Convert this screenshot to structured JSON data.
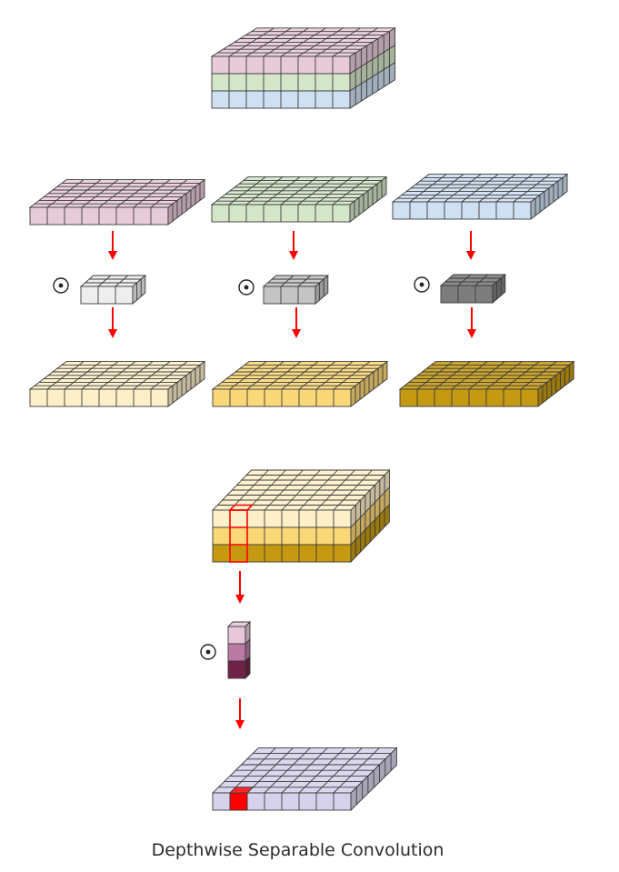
{
  "caption": "Depthwise Separable Convolution",
  "colors": {
    "pink": "#e8cbd9",
    "green": "#d3e6c8",
    "blue": "#cfe0f2",
    "light_yellow": "#fdefc8",
    "yellow": "#fbd877",
    "dark_yellow": "#c59a12",
    "kernel_light": "#eeeeee",
    "kernel_mid": "#c4c4c4",
    "kernel_dark": "#7d7d7d",
    "pw_top": "#e6c6d8",
    "pw_mid": "#b87aa2",
    "pw_bottom": "#6e2248",
    "output": "#d6d2ec",
    "highlight": "#ff0000",
    "arrow": "#ff0000",
    "stroke": "#3a3a3a"
  },
  "nodes": [
    {
      "name": "input-volume",
      "layers": [
        "pink",
        "green",
        "blue"
      ]
    },
    {
      "name": "input-channel-1",
      "layers": [
        "pink"
      ]
    },
    {
      "name": "input-channel-2",
      "layers": [
        "green"
      ]
    },
    {
      "name": "input-channel-3",
      "layers": [
        "blue"
      ]
    },
    {
      "name": "depthwise-kernel-1",
      "layers": [
        "kernel_light"
      ]
    },
    {
      "name": "depthwise-kernel-2",
      "layers": [
        "kernel_mid"
      ]
    },
    {
      "name": "depthwise-kernel-3",
      "layers": [
        "kernel_dark"
      ]
    },
    {
      "name": "depthwise-output-1",
      "layers": [
        "light_yellow"
      ]
    },
    {
      "name": "depthwise-output-2",
      "layers": [
        "yellow"
      ]
    },
    {
      "name": "depthwise-output-3",
      "layers": [
        "dark_yellow"
      ]
    },
    {
      "name": "stacked-depthwise-output",
      "layers": [
        "light_yellow",
        "yellow",
        "dark_yellow"
      ]
    },
    {
      "name": "pointwise-kernel",
      "layers": [
        "pw_top",
        "pw_mid",
        "pw_bottom"
      ]
    },
    {
      "name": "final-output",
      "layers": [
        "output"
      ]
    }
  ],
  "operators": [
    {
      "name": "conv-operator-1",
      "symbol": "⊙"
    },
    {
      "name": "conv-operator-2",
      "symbol": "⊙"
    },
    {
      "name": "conv-operator-3",
      "symbol": "⊙"
    },
    {
      "name": "conv-operator-4",
      "symbol": "⊙"
    }
  ]
}
